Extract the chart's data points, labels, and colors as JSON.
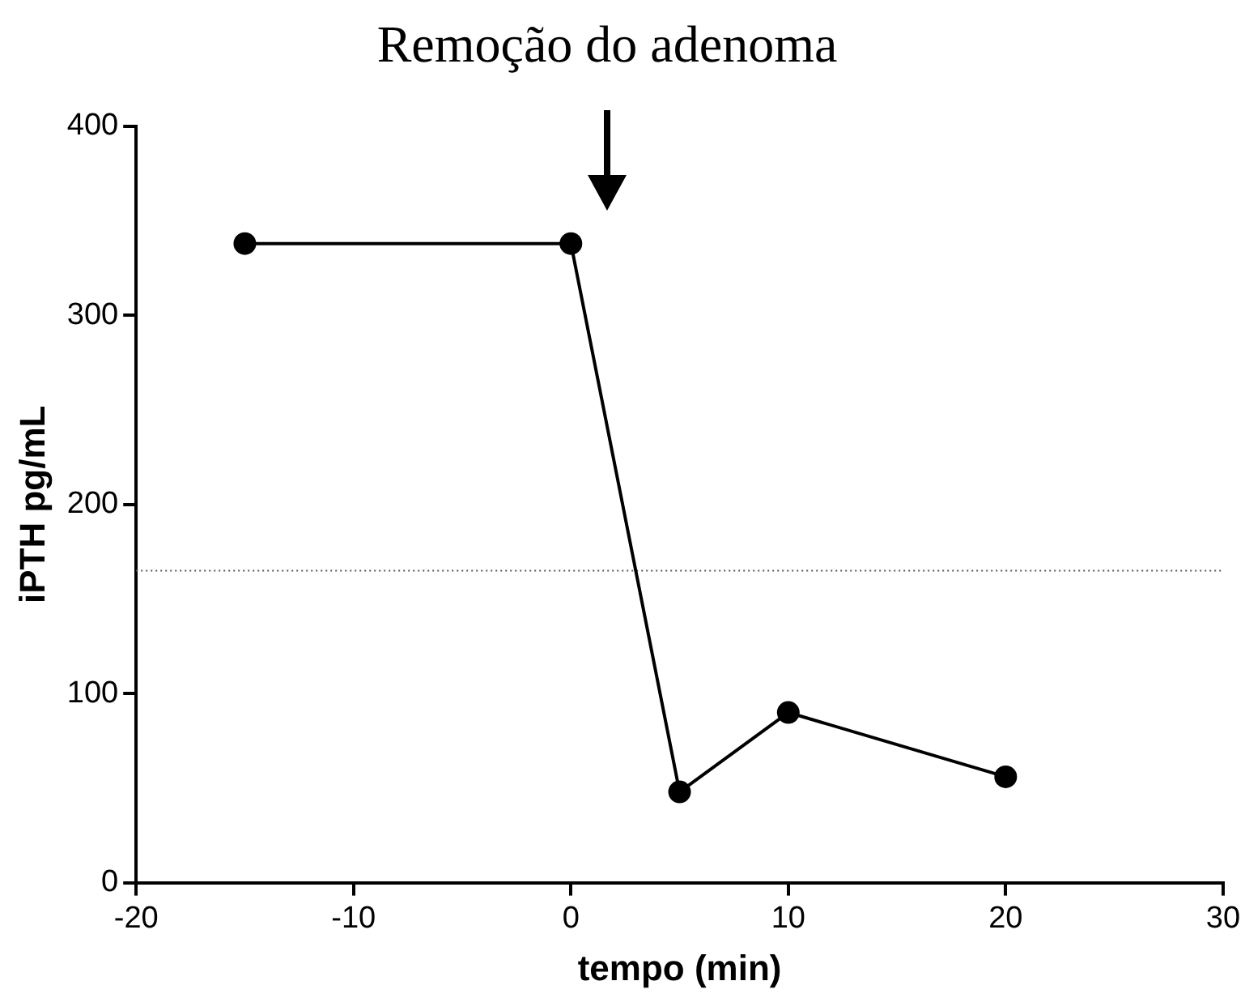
{
  "chart_data": {
    "type": "line",
    "xlabel": "tempo (min)",
    "ylabel": "iPTH pg/mL",
    "x": [
      -15,
      0,
      5,
      10,
      20
    ],
    "series": [
      {
        "color": "#000000",
        "values": [
          338,
          338,
          48,
          90,
          56
        ]
      }
    ],
    "xlim": [
      -20,
      30
    ],
    "xticks": [
      -20,
      -10,
      0,
      10,
      20,
      30
    ],
    "ylim": [
      0,
      400
    ],
    "yticks": [
      0,
      100,
      200,
      300,
      400
    ],
    "grid": false,
    "legend": false,
    "marker": "circle",
    "line_style": "solid",
    "ref_lines": [
      {
        "axis": "y",
        "value": 165,
        "color": "#555555",
        "line_style": "dotted"
      }
    ],
    "annotations": [
      "Remoção do adenoma"
    ]
  }
}
